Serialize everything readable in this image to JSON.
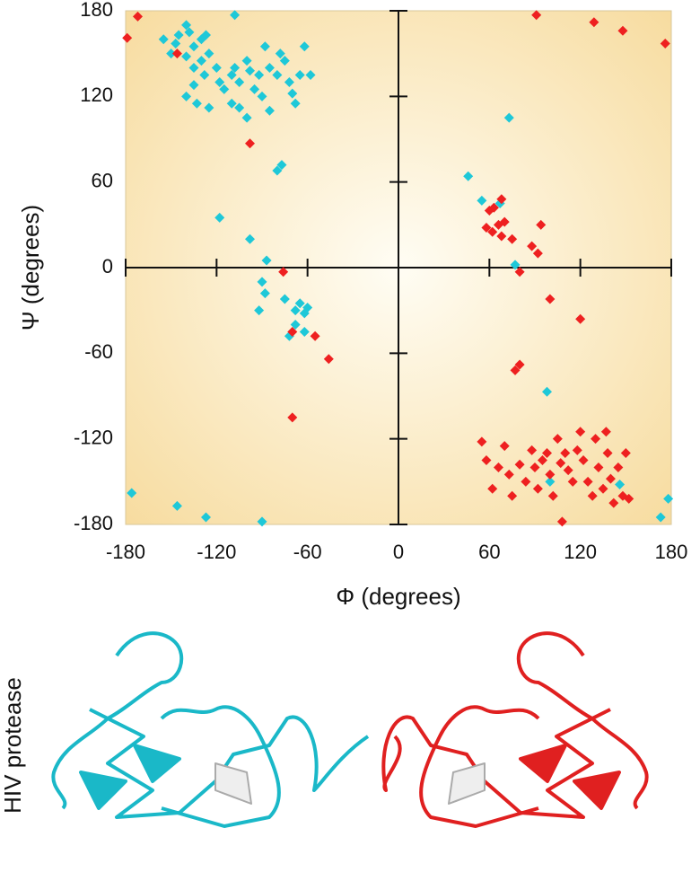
{
  "chart_data": {
    "type": "scatter",
    "xlabel": "Φ (degrees)",
    "ylabel": "Ψ (degrees)",
    "xlim": [
      -180,
      180
    ],
    "ylim": [
      -180,
      180
    ],
    "xticks": [
      -180,
      -120,
      -60,
      0,
      60,
      120,
      180
    ],
    "yticks": [
      -180,
      -120,
      -60,
      0,
      60,
      120,
      180
    ],
    "series": [
      {
        "color": "#1ec8d8",
        "x": [
          -155,
          -147,
          -145,
          -140,
          -138,
          -135,
          -130,
          -127,
          -150,
          -140,
          -135,
          -130,
          -128,
          -125,
          -120,
          -118,
          -115,
          -110,
          -108,
          -105,
          -100,
          -98,
          -95,
          -92,
          -90,
          -88,
          -85,
          -80,
          -78,
          -75,
          -72,
          -70,
          -65,
          -62,
          -58,
          -68,
          -100,
          -125,
          -133,
          -140,
          -135,
          -110,
          -105,
          -85,
          -108,
          -80,
          -77,
          -118,
          -98,
          -87,
          -90,
          -88,
          -75,
          -68,
          -65,
          -62,
          -60,
          -68,
          -62,
          -72,
          -92,
          46,
          55,
          67,
          73,
          77,
          98,
          100,
          -176,
          -146,
          -127,
          -90,
          173,
          178,
          146
        ],
        "values": [
          160,
          157,
          163,
          170,
          165,
          155,
          160,
          163,
          150,
          148,
          140,
          145,
          135,
          150,
          140,
          130,
          125,
          135,
          140,
          130,
          145,
          138,
          125,
          135,
          120,
          155,
          140,
          135,
          150,
          145,
          130,
          122,
          135,
          155,
          135,
          115,
          105,
          112,
          115,
          120,
          128,
          115,
          112,
          110,
          177,
          68,
          72,
          35,
          20,
          5,
          -10,
          -18,
          -22,
          -30,
          -25,
          -32,
          -28,
          -40,
          -45,
          -48,
          -30,
          64,
          47,
          45,
          105,
          2,
          -87,
          -150,
          -158,
          -167,
          -175,
          -178,
          -175,
          -162,
          -152
        ]
      },
      {
        "color": "#ee2020",
        "x": [
          -179,
          -172,
          -146,
          -98,
          -76,
          -70,
          -55,
          -46,
          -70,
          60,
          63,
          68,
          58,
          62,
          66,
          70,
          68,
          75,
          80,
          88,
          92,
          94,
          100,
          120,
          80,
          77,
          55,
          58,
          62,
          66,
          70,
          73,
          75,
          80,
          84,
          88,
          90,
          92,
          95,
          98,
          100,
          102,
          105,
          107,
          110,
          112,
          115,
          118,
          120,
          122,
          125,
          128,
          130,
          132,
          135,
          137,
          138,
          140,
          142,
          145,
          148,
          150,
          152,
          108,
          91,
          129,
          148,
          176
        ],
        "values": [
          161,
          176,
          150,
          87,
          -3,
          -45,
          -48,
          -64,
          -105,
          40,
          42,
          48,
          28,
          25,
          30,
          32,
          22,
          20,
          -3,
          15,
          10,
          30,
          -22,
          -36,
          -68,
          -72,
          -122,
          -135,
          -155,
          -140,
          -125,
          -145,
          -160,
          -138,
          -150,
          -128,
          -140,
          -155,
          -135,
          -130,
          -145,
          -160,
          -120,
          -137,
          -130,
          -142,
          -150,
          -128,
          -115,
          -135,
          -150,
          -160,
          -120,
          -140,
          -155,
          -115,
          -130,
          -148,
          -165,
          -140,
          -160,
          -130,
          -162,
          -178,
          177,
          172,
          166,
          157
        ]
      }
    ]
  },
  "structure_label": "HIV protease"
}
